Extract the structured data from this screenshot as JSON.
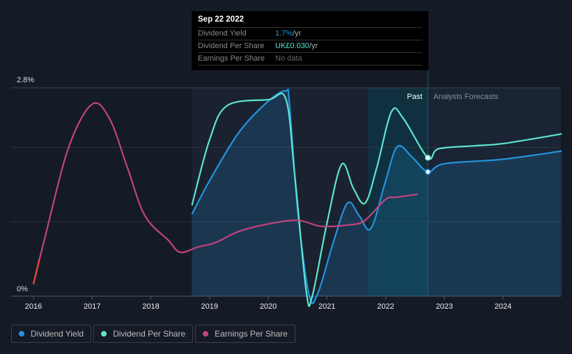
{
  "chart_data": {
    "type": "line",
    "y_ticks": [
      "2.8%",
      "0%"
    ],
    "ylim": [
      0,
      2.8
    ],
    "xlim": [
      2015.85,
      2025
    ],
    "x_ticks": [
      "2016",
      "2017",
      "2018",
      "2019",
      "2020",
      "2021",
      "2022",
      "2023",
      "2024"
    ],
    "regions": {
      "past_label": "Past",
      "forecast_label": "Analysts Forecasts",
      "past_start": 2021.7,
      "now": 2022.72
    },
    "series": [
      {
        "name": "Dividend Yield",
        "color": "#2394df",
        "points": [
          [
            2018.7,
            1.1
          ],
          [
            2019,
            1.55
          ],
          [
            2019.5,
            2.2
          ],
          [
            2020,
            2.62
          ],
          [
            2020.3,
            2.76
          ],
          [
            2020.36,
            2.6
          ],
          [
            2020.5,
            1.17
          ],
          [
            2020.7,
            0
          ],
          [
            2020.85,
            0.05
          ],
          [
            2021.1,
            0.7
          ],
          [
            2021.35,
            1.25
          ],
          [
            2021.55,
            1.08
          ],
          [
            2021.75,
            0.91
          ],
          [
            2022,
            1.55
          ],
          [
            2022.2,
            2.01
          ],
          [
            2022.45,
            1.87
          ],
          [
            2022.72,
            1.67
          ],
          [
            2023,
            1.78
          ],
          [
            2024,
            1.84
          ],
          [
            2025,
            1.95
          ]
        ]
      },
      {
        "name": "Dividend Per Share",
        "color": "#5ee5d0",
        "points": [
          [
            2018.7,
            1.22
          ],
          [
            2019,
            2.1
          ],
          [
            2019.3,
            2.56
          ],
          [
            2020,
            2.64
          ],
          [
            2020.3,
            2.65
          ],
          [
            2020.45,
            1.64
          ],
          [
            2020.65,
            0.05
          ],
          [
            2020.75,
            0
          ],
          [
            2021,
            0.98
          ],
          [
            2021.25,
            1.77
          ],
          [
            2021.45,
            1.45
          ],
          [
            2021.65,
            1.25
          ],
          [
            2021.85,
            1.73
          ],
          [
            2022.1,
            2.48
          ],
          [
            2022.3,
            2.39
          ],
          [
            2022.72,
            1.86
          ],
          [
            2022.9,
            1.98
          ],
          [
            2023.5,
            2.02
          ],
          [
            2024,
            2.05
          ],
          [
            2025,
            2.18
          ]
        ]
      },
      {
        "name": "Earnings Per Share",
        "color": "#c2437f",
        "points": [
          [
            2016,
            0.16
          ],
          [
            2016.2,
            0.8
          ],
          [
            2016.6,
            2.0
          ],
          [
            2017,
            2.58
          ],
          [
            2017.3,
            2.38
          ],
          [
            2017.6,
            1.73
          ],
          [
            2017.9,
            1.08
          ],
          [
            2018.3,
            0.75
          ],
          [
            2018.5,
            0.59
          ],
          [
            2018.8,
            0.66
          ],
          [
            2019.1,
            0.72
          ],
          [
            2019.5,
            0.87
          ],
          [
            2020,
            0.97
          ],
          [
            2020.5,
            1.02
          ],
          [
            2020.9,
            0.94
          ],
          [
            2021.4,
            0.96
          ],
          [
            2021.65,
            1.02
          ],
          [
            2022,
            1.3
          ],
          [
            2022.2,
            1.33
          ],
          [
            2022.55,
            1.37
          ]
        ]
      }
    ]
  },
  "tooltip": {
    "date": "Sep 22 2022",
    "rows": [
      {
        "label": "Dividend Yield",
        "value": "1.7%",
        "unit": " /yr",
        "color": "#2394df"
      },
      {
        "label": "Dividend Per Share",
        "value": "UK£0.030",
        "unit": " /yr",
        "color": "#5ee5d0"
      },
      {
        "label": "Earnings Per Share",
        "value": "No data",
        "unit": "",
        "color": "#888888"
      }
    ]
  },
  "legend": [
    {
      "label": "Dividend Yield",
      "color": "#2394df"
    },
    {
      "label": "Dividend Per Share",
      "color": "#5ee5d0"
    },
    {
      "label": "Earnings Per Share",
      "color": "#c2437f"
    }
  ]
}
